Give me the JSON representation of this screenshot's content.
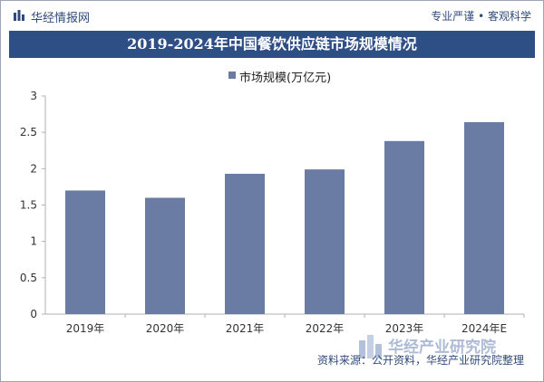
{
  "header": {
    "brand": "华经情报网",
    "tagline": "专业严谨 • 客观科学"
  },
  "chart_data": {
    "type": "bar",
    "title": "2019-2024年中国餐饮供应链市场规模情况",
    "categories": [
      "2019年",
      "2020年",
      "2021年",
      "2022年",
      "2023年",
      "2024年E"
    ],
    "series": [
      {
        "name": "市场规模(万亿元)",
        "values": [
          1.7,
          1.6,
          1.93,
          1.99,
          2.38,
          2.64
        ]
      }
    ],
    "ylim": [
      0,
      3
    ],
    "yticks": [
      "0",
      "0.5",
      "1",
      "1.5",
      "2",
      "2.5",
      "3"
    ],
    "xlabel": "",
    "ylabel": "",
    "legend": "top-center",
    "grid": false,
    "colors": {
      "bar": "#6a7ca3",
      "title_bg": "#2e4f86",
      "accent": "#2f4a7a"
    }
  },
  "footer": {
    "source": "资料来源：公开资料，华经产业研究院整理",
    "watermark_brand": "华经产业研究院"
  }
}
